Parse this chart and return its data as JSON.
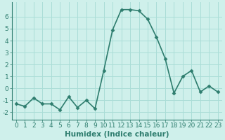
{
  "x": [
    0,
    1,
    2,
    3,
    4,
    5,
    6,
    7,
    8,
    9,
    10,
    11,
    12,
    13,
    14,
    15,
    16,
    17,
    18,
    19,
    20,
    21,
    22,
    23
  ],
  "y": [
    -1.3,
    -1.5,
    -0.8,
    -1.3,
    -1.3,
    -1.8,
    -0.7,
    -1.6,
    -1.0,
    -1.7,
    1.5,
    4.9,
    6.6,
    6.6,
    6.5,
    5.8,
    4.3,
    2.5,
    -0.4,
    1.0,
    1.5,
    -0.3,
    0.2,
    -0.3
  ],
  "line_color": "#2e7d6e",
  "marker": "D",
  "markersize": 2.5,
  "bg_color": "#cff0eb",
  "grid_color": "#aaddd7",
  "xlabel": "Humidex (Indice chaleur)",
  "ylabel": "",
  "xlim": [
    -0.5,
    23.5
  ],
  "ylim": [
    -2.6,
    7.2
  ],
  "yticks": [
    -2,
    -1,
    0,
    1,
    2,
    3,
    4,
    5,
    6
  ],
  "xticks": [
    0,
    1,
    2,
    3,
    4,
    5,
    6,
    7,
    8,
    9,
    10,
    11,
    12,
    13,
    14,
    15,
    16,
    17,
    18,
    19,
    20,
    21,
    22,
    23
  ],
  "linewidth": 1.2,
  "tick_fontsize": 6.5,
  "label_fontsize": 7.5
}
